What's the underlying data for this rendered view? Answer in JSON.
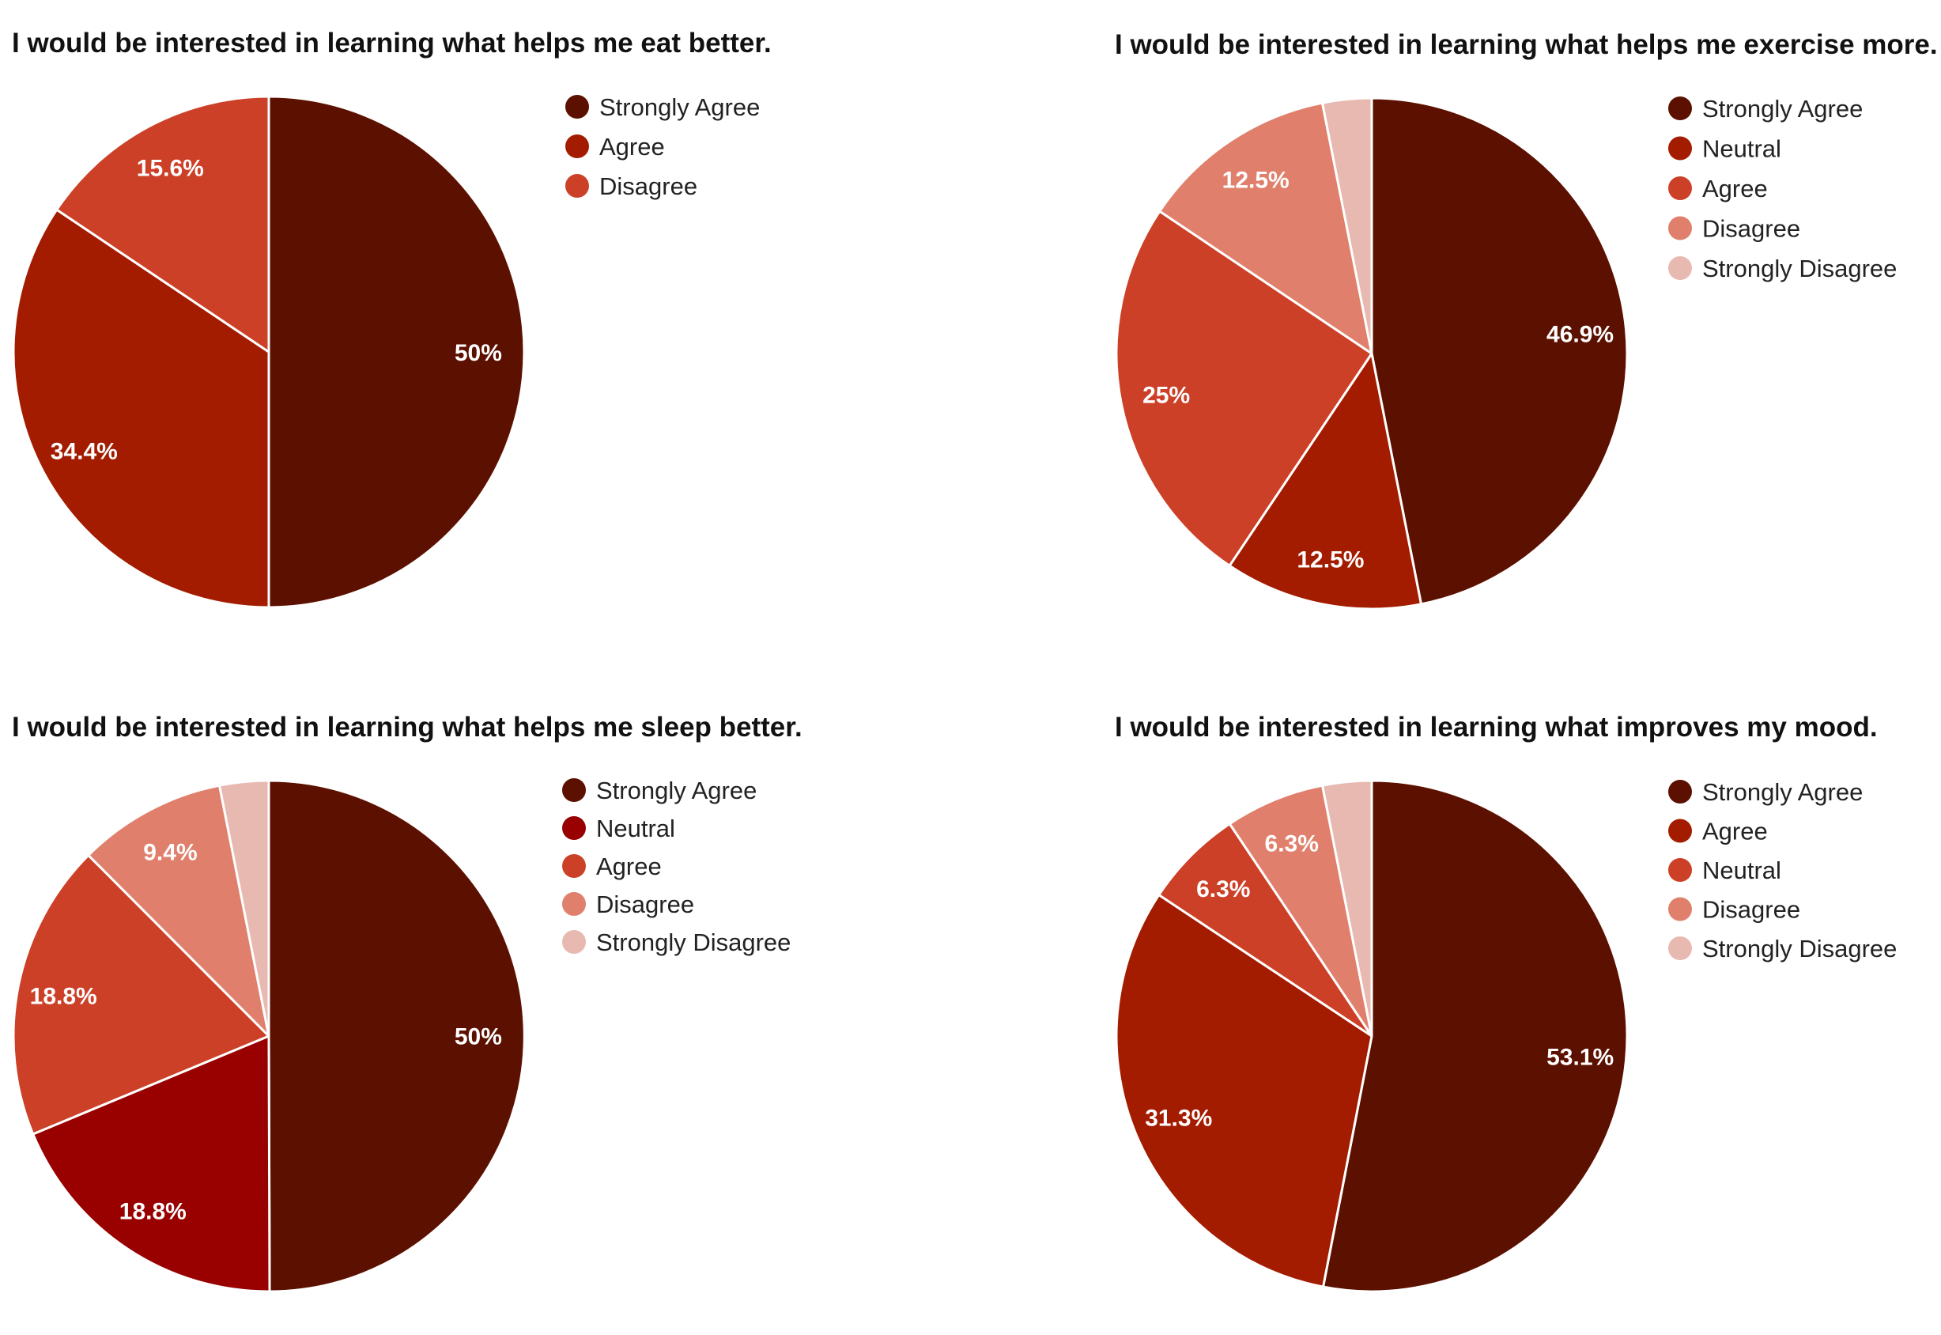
{
  "chart_data": [
    {
      "type": "pie",
      "title": "I would be interested in learning what helps me eat better.",
      "slices": [
        {
          "label": "Strongly Agree",
          "value": 50,
          "display": "50%",
          "color": "#5c1000"
        },
        {
          "label": "Agree",
          "value": 34.4,
          "display": "34.4%",
          "color": "#a31c00"
        },
        {
          "label": "Disagree",
          "value": 15.6,
          "display": "15.6%",
          "color": "#cc4027"
        }
      ],
      "legend": [
        "Strongly Agree",
        "Agree",
        "Disagree"
      ],
      "legend_position": "right"
    },
    {
      "type": "pie",
      "title": "I would be interested in learning what helps me exercise more.",
      "slices": [
        {
          "label": "Strongly Agree",
          "value": 46.9,
          "display": "46.9%",
          "color": "#5c1000"
        },
        {
          "label": "Neutral",
          "value": 12.5,
          "display": "12.5%",
          "color": "#a31c00"
        },
        {
          "label": "Agree",
          "value": 25,
          "display": "25%",
          "color": "#cc4027"
        },
        {
          "label": "Disagree",
          "value": 12.5,
          "display": "12.5%",
          "color": "#e0806c"
        },
        {
          "label": "Strongly Disagree",
          "value": 3.1,
          "display": "",
          "color": "#e8b9b1"
        }
      ],
      "legend": [
        "Strongly Agree",
        "Neutral",
        "Agree",
        "Disagree",
        "Strongly Disagree"
      ],
      "legend_position": "right"
    },
    {
      "type": "pie",
      "title": "I would be interested in learning what helps me sleep better.",
      "slices": [
        {
          "label": "Strongly Agree",
          "value": 50,
          "display": "50%",
          "color": "#5c1000"
        },
        {
          "label": "Neutral",
          "value": 18.8,
          "display": "18.8%",
          "color": "#990000"
        },
        {
          "label": "Agree",
          "value": 18.8,
          "display": "18.8%",
          "color": "#cc4027"
        },
        {
          "label": "Disagree",
          "value": 9.4,
          "display": "9.4%",
          "color": "#e0806c"
        },
        {
          "label": "Strongly Disagree",
          "value": 3.1,
          "display": "",
          "color": "#e8b9b1"
        }
      ],
      "legend": [
        "Strongly Agree",
        "Neutral",
        "Agree",
        "Disagree",
        "Strongly Disagree"
      ],
      "legend_position": "right"
    },
    {
      "type": "pie",
      "title": "I would be interested in learning what improves my mood.",
      "slices": [
        {
          "label": "Strongly Agree",
          "value": 53.1,
          "display": "53.1%",
          "color": "#5c1000"
        },
        {
          "label": "Agree",
          "value": 31.3,
          "display": "31.3%",
          "color": "#a31c00"
        },
        {
          "label": "Neutral",
          "value": 6.3,
          "display": "6.3%",
          "color": "#cc4027"
        },
        {
          "label": "Disagree",
          "value": 6.3,
          "display": "6.3%",
          "color": "#e0806c"
        },
        {
          "label": "Strongly Disagree",
          "value": 3.1,
          "display": "",
          "color": "#e8b9b1"
        }
      ],
      "legend": [
        "Strongly Agree",
        "Agree",
        "Neutral",
        "Disagree",
        "Strongly Disagree"
      ],
      "legend_position": "right"
    }
  ]
}
